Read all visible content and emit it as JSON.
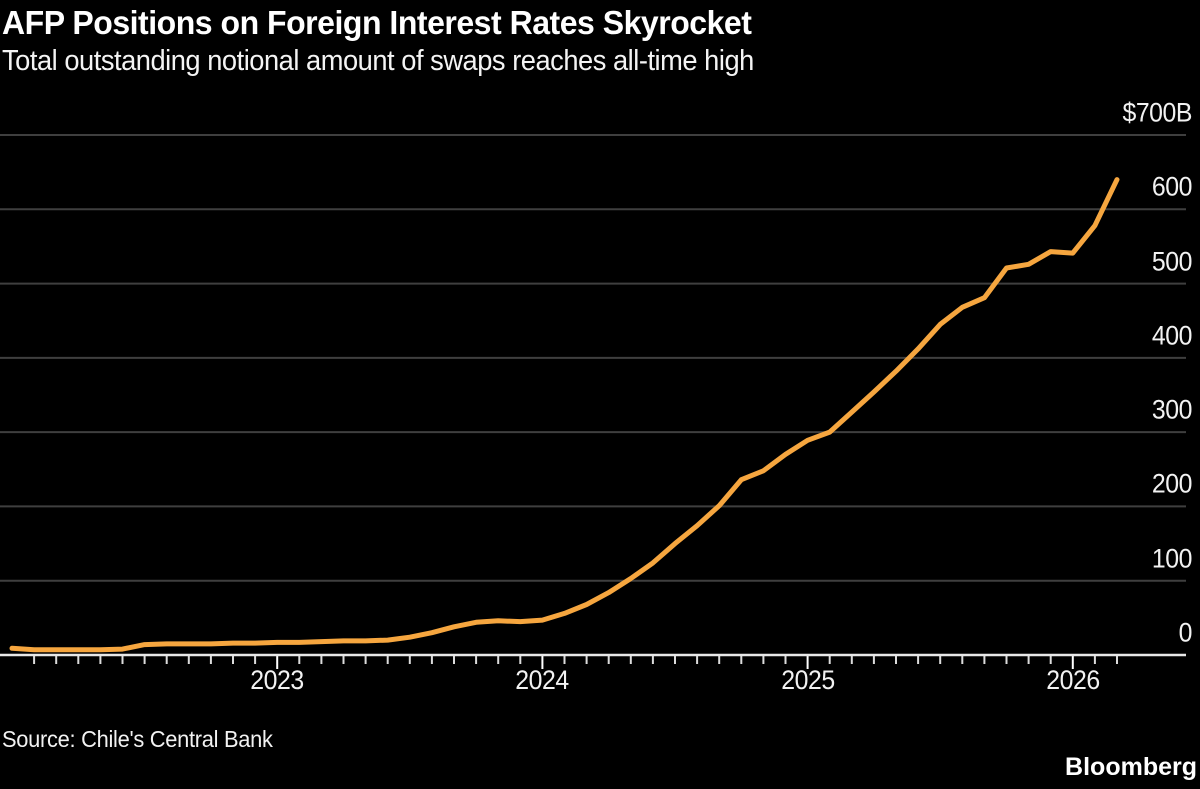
{
  "header": {
    "title": "AFP Positions on Foreign Interest Rates Skyrocket",
    "subtitle": "Total outstanding notional amount of swaps reaches all-time high"
  },
  "footer": {
    "source": "Source: Chile's Central Bank",
    "brand": "Bloomberg"
  },
  "colors": {
    "background": "#000000",
    "line": "#F6A63F",
    "gridline": "#3F3F3F",
    "axis_line": "#E8E8E8",
    "tick_minor": "#DCDCDC",
    "tick_major": "#FFFFFF",
    "label_text": "#F2F2F2"
  },
  "chart_data": {
    "type": "line",
    "title": "AFP Positions on Foreign Interest Rates Skyrocket",
    "subtitle": "Total outstanding notional amount of swaps reaches all-time high",
    "unit": "USD billions",
    "ylim": [
      0,
      700
    ],
    "grid": "horizontal",
    "legend": "none",
    "y_tick_values": [
      0,
      100,
      200,
      300,
      400,
      500,
      600,
      700
    ],
    "y_tick_labels": [
      "0",
      "100",
      "200",
      "300",
      "400",
      "500",
      "600",
      "$700B"
    ],
    "x_start": "2022-01",
    "x_end": "2026-03",
    "x_year_ticks": [
      {
        "label": "2023",
        "month_index": 12
      },
      {
        "label": "2024",
        "month_index": 24
      },
      {
        "label": "2025",
        "month_index": 36
      },
      {
        "label": "2026",
        "month_index": 48
      }
    ],
    "series": [
      {
        "name": "Total outstanding notional amount of swaps ($B)",
        "color": "#F6A63F",
        "start": "2022-01",
        "frequency": "monthly",
        "monthly_values": [
          9,
          7,
          7,
          7,
          7,
          8,
          14,
          15,
          15,
          15,
          16,
          16,
          17,
          17,
          18,
          19,
          19,
          20,
          24,
          30,
          38,
          44,
          46,
          45,
          47,
          56,
          68,
          84,
          103,
          124,
          150,
          174,
          201,
          236,
          248,
          270,
          289,
          300,
          327,
          354,
          382,
          412,
          445,
          468,
          481,
          521,
          526,
          543,
          541,
          578,
          640
        ]
      }
    ]
  }
}
